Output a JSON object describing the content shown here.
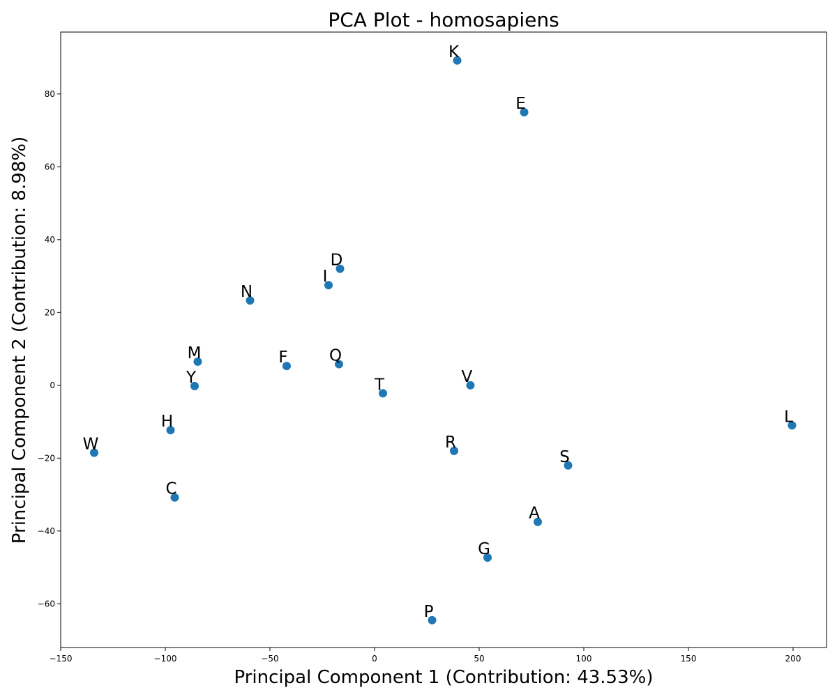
{
  "chart_data": {
    "type": "scatter",
    "title": "PCA Plot - homosapiens",
    "xlabel": "Principal Component 1 (Contribution: 43.53%)",
    "ylabel": "Principal Component 2 (Contribution: 8.98%)",
    "xlim": [
      -150,
      216
    ],
    "ylim": [
      -72,
      97
    ],
    "xticks": [
      -150,
      -100,
      -50,
      0,
      50,
      100,
      150,
      200
    ],
    "yticks": [
      -60,
      -40,
      -20,
      0,
      20,
      40,
      60,
      80
    ],
    "xtick_labels": [
      "−150",
      "−100",
      "−50",
      "0",
      "50",
      "100",
      "150",
      "200"
    ],
    "ytick_labels": [
      "−60",
      "−40",
      "−20",
      "0",
      "20",
      "40",
      "60",
      "80"
    ],
    "grid": false,
    "marker_color": "#1f77b4",
    "points": [
      {
        "label": "K",
        "x": 39.5,
        "y": 89.2
      },
      {
        "label": "E",
        "x": 71.5,
        "y": 75.0
      },
      {
        "label": "D",
        "x": -16.5,
        "y": 32.0
      },
      {
        "label": "I",
        "x": -22.0,
        "y": 27.5
      },
      {
        "label": "N",
        "x": -59.5,
        "y": 23.3
      },
      {
        "label": "M",
        "x": -84.5,
        "y": 6.5
      },
      {
        "label": "F",
        "x": -42.0,
        "y": 5.3
      },
      {
        "label": "Q",
        "x": -17.0,
        "y": 5.8
      },
      {
        "label": "Y",
        "x": -86.0,
        "y": -0.2
      },
      {
        "label": "T",
        "x": 4.0,
        "y": -2.2
      },
      {
        "label": "V",
        "x": 45.8,
        "y": 0.0
      },
      {
        "label": "H",
        "x": -97.5,
        "y": -12.3
      },
      {
        "label": "W",
        "x": -134.0,
        "y": -18.5
      },
      {
        "label": "R",
        "x": 38.0,
        "y": -18.0
      },
      {
        "label": "S",
        "x": 92.5,
        "y": -22.0
      },
      {
        "label": "L",
        "x": 199.5,
        "y": -11.0
      },
      {
        "label": "C",
        "x": -95.5,
        "y": -30.8
      },
      {
        "label": "A",
        "x": 78.0,
        "y": -37.5
      },
      {
        "label": "G",
        "x": 54.0,
        "y": -47.3
      },
      {
        "label": "P",
        "x": 27.5,
        "y": -64.5
      }
    ]
  }
}
